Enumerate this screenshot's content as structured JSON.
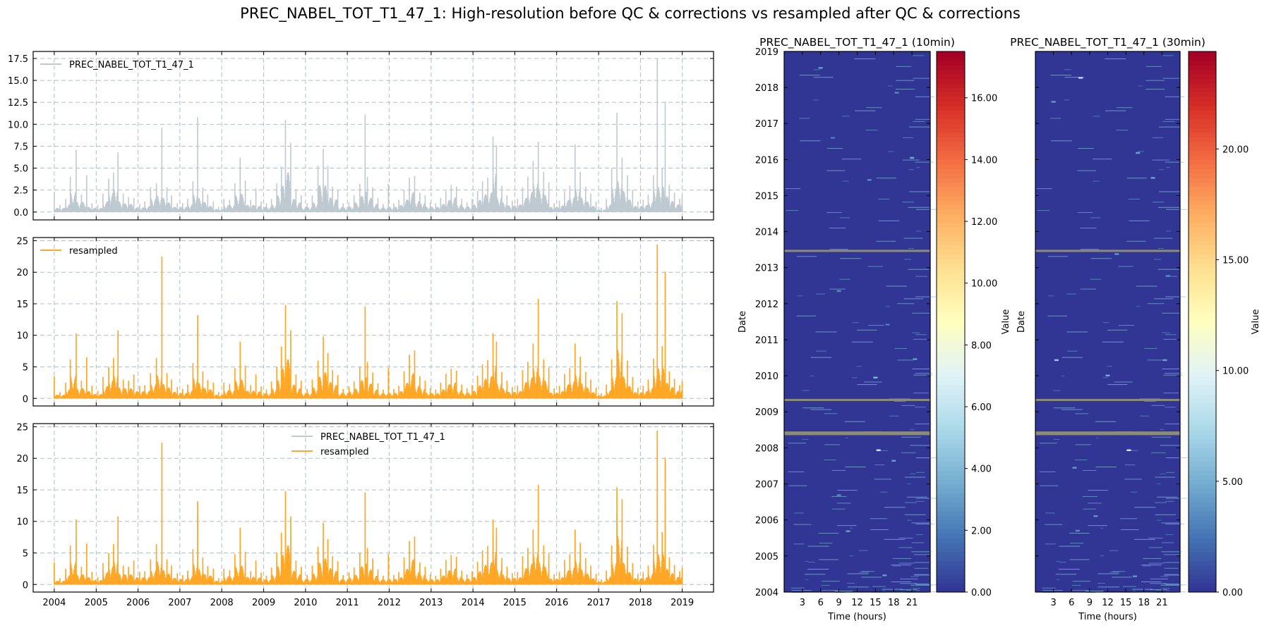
{
  "figure": {
    "title": "PREC_NABEL_TOT_T1_47_1: High-resolution before QC & corrections vs resampled after QC & corrections"
  },
  "colors": {
    "raw": "#bfc9d0",
    "resampled": "#ffa726",
    "grid": "#b0bec5",
    "heatmap_background": "#313695",
    "missing": "#8c8c7a"
  },
  "chart_data": [
    {
      "type": "line",
      "panel": "timeseries-raw",
      "title": "",
      "xlabel": "",
      "ylabel": "",
      "xlim": [
        "2003-07-01",
        "2019-10-01"
      ],
      "ylim": [
        -0.9,
        18.3
      ],
      "xticks": [
        "2004",
        "2005",
        "2006",
        "2007",
        "2008",
        "2009",
        "2010",
        "2011",
        "2012",
        "2013",
        "2014",
        "2015",
        "2016",
        "2017",
        "2018",
        "2019"
      ],
      "yticks": [
        "0.0",
        "2.5",
        "5.0",
        "7.5",
        "10.0",
        "12.5",
        "15.0",
        "17.5"
      ],
      "grid": true,
      "legend_position": "upper-left",
      "series": [
        {
          "name": "PREC_NABEL_TOT_T1_47_1",
          "x": [
            "2004-01-01",
            "2004-02-20",
            "2004-04-10",
            "2004-05-20",
            "2004-07-10",
            "2004-08-25",
            "2004-10-10",
            "2004-11-25",
            "2005-01-15",
            "2005-03-01",
            "2005-04-20",
            "2005-06-01",
            "2005-07-10",
            "2005-08-25",
            "2005-10-10",
            "2005-11-25",
            "2006-01-15",
            "2006-03-01",
            "2006-04-20",
            "2006-06-10",
            "2006-07-28",
            "2006-09-10",
            "2006-10-20",
            "2006-12-10",
            "2007-01-25",
            "2007-03-10",
            "2007-04-25",
            "2007-06-05",
            "2007-07-20",
            "2007-09-01",
            "2007-10-20",
            "2007-12-05",
            "2008-01-20",
            "2008-03-10",
            "2008-04-25",
            "2008-06-10",
            "2008-07-25",
            "2008-09-10",
            "2008-10-25",
            "2008-12-10",
            "2009-01-25",
            "2009-03-10",
            "2009-04-25",
            "2009-06-05",
            "2009-07-10",
            "2009-08-25",
            "2009-10-10",
            "2009-11-25",
            "2010-01-15",
            "2010-03-01",
            "2010-04-20",
            "2010-06-05",
            "2010-07-15",
            "2010-08-25",
            "2010-10-10",
            "2010-11-25",
            "2011-01-15",
            "2011-03-01",
            "2011-04-20",
            "2011-06-05",
            "2011-06-25",
            "2011-08-10",
            "2011-09-25",
            "2011-11-10",
            "2011-12-25",
            "2012-02-10",
            "2012-03-25",
            "2012-05-10",
            "2012-06-25",
            "2012-08-10",
            "2012-09-25",
            "2012-11-10",
            "2012-12-25",
            "2013-02-10",
            "2013-03-25",
            "2013-05-10",
            "2013-06-25",
            "2013-08-10",
            "2013-09-25",
            "2013-11-10",
            "2013-12-25",
            "2014-02-10",
            "2014-03-25",
            "2014-05-10",
            "2014-06-25",
            "2014-07-25",
            "2014-09-10",
            "2014-10-25",
            "2014-12-10",
            "2015-01-25",
            "2015-03-10",
            "2015-04-25",
            "2015-06-10",
            "2015-07-25",
            "2015-09-10",
            "2015-10-25",
            "2015-12-10",
            "2016-01-25",
            "2016-03-10",
            "2016-04-25",
            "2016-06-10",
            "2016-07-25",
            "2016-09-10",
            "2016-10-25",
            "2016-12-10",
            "2017-01-25",
            "2017-03-10",
            "2017-04-25",
            "2017-06-10",
            "2017-07-25",
            "2017-09-10",
            "2017-10-25",
            "2017-12-10",
            "2018-01-25",
            "2018-03-10",
            "2018-04-25",
            "2018-05-28",
            "2018-07-10",
            "2018-08-05",
            "2018-09-10",
            "2018-10-25",
            "2018-12-10",
            "2018-12-31"
          ],
          "values": [
            2.3,
            0.8,
            1.5,
            4.0,
            7.1,
            2.0,
            4.2,
            1.0,
            0.8,
            2.1,
            3.8,
            4.5,
            6.8,
            2.1,
            1.7,
            1.6,
            0.9,
            1.2,
            2.8,
            3.3,
            9.6,
            2.8,
            1.9,
            1.0,
            1.0,
            1.5,
            3.5,
            10.8,
            2.8,
            2.0,
            1.2,
            0.6,
            1.5,
            1.4,
            3.3,
            6.2,
            3.6,
            1.4,
            2.7,
            1.2,
            1.0,
            1.5,
            3.3,
            5.2,
            10.5,
            7.9,
            2.6,
            1.9,
            1.0,
            1.9,
            5.3,
            7.2,
            5.3,
            2.9,
            2.5,
            1.0,
            1.1,
            1.9,
            3.2,
            11.1,
            4.0,
            2.8,
            1.6,
            0.9,
            3.2,
            1.0,
            1.4,
            2.5,
            3.9,
            4.1,
            2.2,
            1.9,
            1.1,
            1.0,
            1.6,
            2.4,
            3.1,
            2.9,
            1.5,
            1.1,
            1.5,
            2.4,
            3.5,
            3.9,
            8.6,
            7.6,
            3.0,
            1.9,
            1.3,
            1.5,
            2.8,
            4.0,
            5.8,
            8.0,
            4.6,
            3.4,
            1.0,
            1.3,
            2.4,
            3.0,
            7.7,
            4.6,
            2.9,
            2.1,
            1.2,
            0.5,
            1.5,
            5.0,
            11.3,
            6.2,
            4.2,
            2.5,
            1.2,
            1.4,
            2.0,
            4.2,
            17.5,
            5.0,
            12.6,
            3.1,
            2.2,
            1.5,
            1.8
          ]
        }
      ]
    },
    {
      "type": "line",
      "panel": "timeseries-resampled",
      "title": "",
      "xlabel": "",
      "ylabel": "",
      "xlim": [
        "2003-07-01",
        "2019-10-01"
      ],
      "ylim": [
        -1.2,
        25.5
      ],
      "xticks": [
        "2004",
        "2005",
        "2006",
        "2007",
        "2008",
        "2009",
        "2010",
        "2011",
        "2012",
        "2013",
        "2014",
        "2015",
        "2016",
        "2017",
        "2018",
        "2019"
      ],
      "yticks": [
        "0",
        "5",
        "10",
        "15",
        "20",
        "25"
      ],
      "grid": true,
      "legend_position": "upper-left",
      "series": [
        {
          "name": "resampled",
          "x": [
            "2004-01-01",
            "2004-02-20",
            "2004-04-10",
            "2004-05-20",
            "2004-07-10",
            "2004-08-25",
            "2004-10-10",
            "2004-11-25",
            "2005-01-15",
            "2005-03-01",
            "2005-04-20",
            "2005-06-01",
            "2005-07-10",
            "2005-08-25",
            "2005-10-10",
            "2005-11-25",
            "2006-01-15",
            "2006-03-01",
            "2006-04-20",
            "2006-06-10",
            "2006-07-28",
            "2006-09-10",
            "2006-10-20",
            "2006-12-10",
            "2007-01-25",
            "2007-03-10",
            "2007-04-25",
            "2007-06-05",
            "2007-07-20",
            "2007-09-01",
            "2007-10-20",
            "2007-12-05",
            "2008-01-20",
            "2008-03-10",
            "2008-04-25",
            "2008-06-10",
            "2008-07-25",
            "2008-09-10",
            "2008-10-25",
            "2008-12-10",
            "2009-01-25",
            "2009-03-10",
            "2009-04-25",
            "2009-06-05",
            "2009-07-10",
            "2009-08-25",
            "2009-10-10",
            "2009-11-25",
            "2010-01-15",
            "2010-03-01",
            "2010-04-20",
            "2010-06-05",
            "2010-07-15",
            "2010-08-25",
            "2010-10-10",
            "2010-11-25",
            "2011-01-15",
            "2011-03-01",
            "2011-04-20",
            "2011-06-05",
            "2011-06-25",
            "2011-08-10",
            "2011-09-25",
            "2011-11-10",
            "2011-12-25",
            "2012-02-10",
            "2012-03-25",
            "2012-05-10",
            "2012-06-25",
            "2012-08-10",
            "2012-09-25",
            "2012-11-10",
            "2012-12-25",
            "2013-02-10",
            "2013-03-25",
            "2013-05-10",
            "2013-06-25",
            "2013-08-10",
            "2013-09-25",
            "2013-11-10",
            "2013-12-25",
            "2014-02-10",
            "2014-03-25",
            "2014-05-10",
            "2014-06-25",
            "2014-07-25",
            "2014-09-10",
            "2014-10-25",
            "2014-12-10",
            "2015-01-25",
            "2015-03-10",
            "2015-04-25",
            "2015-06-10",
            "2015-07-25",
            "2015-09-10",
            "2015-10-25",
            "2015-12-10",
            "2016-01-25",
            "2016-03-10",
            "2016-04-25",
            "2016-06-10",
            "2016-07-25",
            "2016-09-10",
            "2016-10-25",
            "2016-12-10",
            "2017-01-25",
            "2017-03-10",
            "2017-04-25",
            "2017-06-10",
            "2017-07-25",
            "2017-09-10",
            "2017-10-25",
            "2017-12-10",
            "2018-01-25",
            "2018-03-10",
            "2018-04-25",
            "2018-05-28",
            "2018-07-10",
            "2018-08-05",
            "2018-09-10",
            "2018-10-25",
            "2018-12-10",
            "2018-12-31"
          ],
          "values": [
            3.5,
            1.0,
            2.5,
            6.2,
            10.3,
            2.8,
            6.5,
            2.0,
            1.2,
            3.4,
            5.0,
            6.4,
            10.8,
            3.0,
            2.8,
            3.8,
            2.0,
            2.1,
            4.0,
            6.4,
            22.5,
            4.0,
            3.0,
            1.8,
            1.5,
            2.2,
            5.6,
            13.2,
            4.3,
            2.9,
            2.5,
            1.0,
            2.5,
            2.3,
            4.8,
            9.0,
            5.2,
            2.1,
            3.8,
            1.9,
            1.4,
            2.7,
            5.0,
            8.2,
            14.8,
            10.8,
            3.8,
            2.8,
            1.5,
            3.0,
            6.0,
            9.8,
            7.2,
            4.5,
            3.7,
            1.5,
            1.9,
            2.7,
            5.0,
            14.6,
            5.8,
            4.1,
            2.4,
            1.4,
            4.8,
            1.5,
            2.0,
            4.3,
            6.9,
            7.6,
            3.5,
            2.8,
            1.6,
            1.4,
            2.5,
            3.9,
            4.7,
            4.4,
            2.2,
            1.6,
            2.1,
            3.6,
            5.4,
            6.1,
            10.3,
            9.0,
            4.2,
            2.8,
            1.8,
            2.0,
            4.5,
            5.8,
            8.7,
            15.8,
            6.2,
            4.9,
            1.6,
            2.0,
            3.9,
            4.8,
            8.7,
            6.6,
            4.2,
            3.0,
            1.7,
            0.8,
            2.2,
            6.2,
            15.4,
            13.5,
            6.0,
            3.4,
            1.7,
            2.0,
            3.0,
            6.3,
            24.4,
            8.3,
            20.1,
            4.3,
            3.1,
            2.1,
            2.7
          ]
        }
      ]
    },
    {
      "type": "line",
      "panel": "timeseries-overlay",
      "title": "",
      "xlabel": "",
      "ylabel": "",
      "xlim": [
        "2003-07-01",
        "2019-10-01"
      ],
      "ylim": [
        -1.2,
        25.5
      ],
      "xticks": [
        "2004",
        "2005",
        "2006",
        "2007",
        "2008",
        "2009",
        "2010",
        "2011",
        "2012",
        "2013",
        "2014",
        "2015",
        "2016",
        "2017",
        "2018",
        "2019"
      ],
      "yticks": [
        "0",
        "5",
        "10",
        "15",
        "20",
        "25"
      ],
      "grid": true,
      "legend_position": "upper-center",
      "series": [
        {
          "name": "PREC_NABEL_TOT_T1_47_1",
          "ref": "timeseries-raw"
        },
        {
          "name": "resampled",
          "ref": "timeseries-resampled"
        }
      ]
    },
    {
      "type": "heatmap",
      "panel": "heatmap-10min",
      "title": "PREC_NABEL_TOT_T1_47_1 (10min)",
      "xlabel": "Time (hours)",
      "ylabel": "Date",
      "xlim": [
        0,
        24
      ],
      "ylim": [
        "2004-01-01",
        "2019-01-01"
      ],
      "xticks": [
        "3",
        "6",
        "9",
        "12",
        "15",
        "18",
        "21"
      ],
      "yticks": [
        "2004",
        "2005",
        "2006",
        "2007",
        "2008",
        "2009",
        "2010",
        "2011",
        "2012",
        "2013",
        "2014",
        "2015",
        "2016",
        "2017",
        "2018",
        "2019"
      ],
      "colorbar": {
        "label": "Value",
        "range": [
          0,
          17.5
        ],
        "ticks": [
          "0.00",
          "2.00",
          "4.00",
          "6.00",
          "8.00",
          "10.00",
          "12.00",
          "14.00",
          "16.00"
        ],
        "colormap": "RdYlBu_r"
      },
      "missing_rows": [
        "2008-05-20",
        "2008-06-05",
        "2009-05-01",
        "2013-06-20"
      ],
      "highlights": [
        {
          "date": "2018-07-20",
          "hour": 6.0,
          "value": 3.0
        },
        {
          "date": "2017-11-10",
          "hour": 18.5,
          "value": 2.5
        },
        {
          "date": "2016-08-10",
          "hour": 8.0,
          "value": 2.0
        },
        {
          "date": "2016-01-20",
          "hour": 21.0,
          "value": 3.5
        },
        {
          "date": "2015-06-10",
          "hour": 14.0,
          "value": 2.5
        },
        {
          "date": "2012-05-10",
          "hour": 9.0,
          "value": 2.5
        },
        {
          "date": "2011-06-05",
          "hour": 17.0,
          "value": 2.0
        },
        {
          "date": "2010-06-20",
          "hour": 21.5,
          "value": 3.0
        },
        {
          "date": "2009-12-15",
          "hour": 15.0,
          "value": 4.0
        },
        {
          "date": "2007-12-10",
          "hour": 15.5,
          "value": 6.5
        },
        {
          "date": "2007-08-25",
          "hour": 18.0,
          "value": 3.0
        },
        {
          "date": "2006-09-10",
          "hour": 9.0,
          "value": 2.5
        },
        {
          "date": "2005-09-10",
          "hour": 10.5,
          "value": 3.0
        },
        {
          "date": "2004-06-20",
          "hour": 16.5,
          "value": 3.0
        }
      ]
    },
    {
      "type": "heatmap",
      "panel": "heatmap-30min",
      "title": "PREC_NABEL_TOT_T1_47_1 (30min)",
      "xlabel": "Time (hours)",
      "ylabel": "Date",
      "xlim": [
        0,
        24
      ],
      "ylim": [
        "2004-01-01",
        "2019-01-01"
      ],
      "xticks": [
        "3",
        "6",
        "9",
        "12",
        "15",
        "18",
        "21"
      ],
      "yticks": [],
      "colorbar": {
        "label": "Value",
        "range": [
          0,
          24.4
        ],
        "ticks": [
          "0.00",
          "5.00",
          "10.00",
          "15.00",
          "20.00"
        ],
        "colormap": "RdYlBu_r"
      },
      "missing_rows": [
        "2008-05-20",
        "2008-06-05",
        "2009-05-01",
        "2013-06-20"
      ],
      "highlights": [
        {
          "date": "2018-04-10",
          "hour": 7.5,
          "value": 8.0
        },
        {
          "date": "2017-08-10",
          "hour": 3.0,
          "value": 4.0
        },
        {
          "date": "2016-03-10",
          "hour": 17.0,
          "value": 4.5
        },
        {
          "date": "2015-07-01",
          "hour": 19.5,
          "value": 4.5
        },
        {
          "date": "2013-05-20",
          "hour": 13.5,
          "value": 4.0
        },
        {
          "date": "2012-10-10",
          "hour": 22.0,
          "value": 3.5
        },
        {
          "date": "2010-06-10",
          "hour": 3.5,
          "value": 6.5
        },
        {
          "date": "2010-06-10",
          "hour": 21.5,
          "value": 4.5
        },
        {
          "date": "2010-01-05",
          "hour": 12.0,
          "value": 5.0
        },
        {
          "date": "2007-12-10",
          "hour": 15.5,
          "value": 9.5
        },
        {
          "date": "2007-06-15",
          "hour": 6.5,
          "value": 4.0
        },
        {
          "date": "2006-02-10",
          "hour": 10.0,
          "value": 4.0
        },
        {
          "date": "2005-09-15",
          "hour": 7.0,
          "value": 3.5
        },
        {
          "date": "2004-06-10",
          "hour": 16.5,
          "value": 4.0
        }
      ]
    }
  ]
}
